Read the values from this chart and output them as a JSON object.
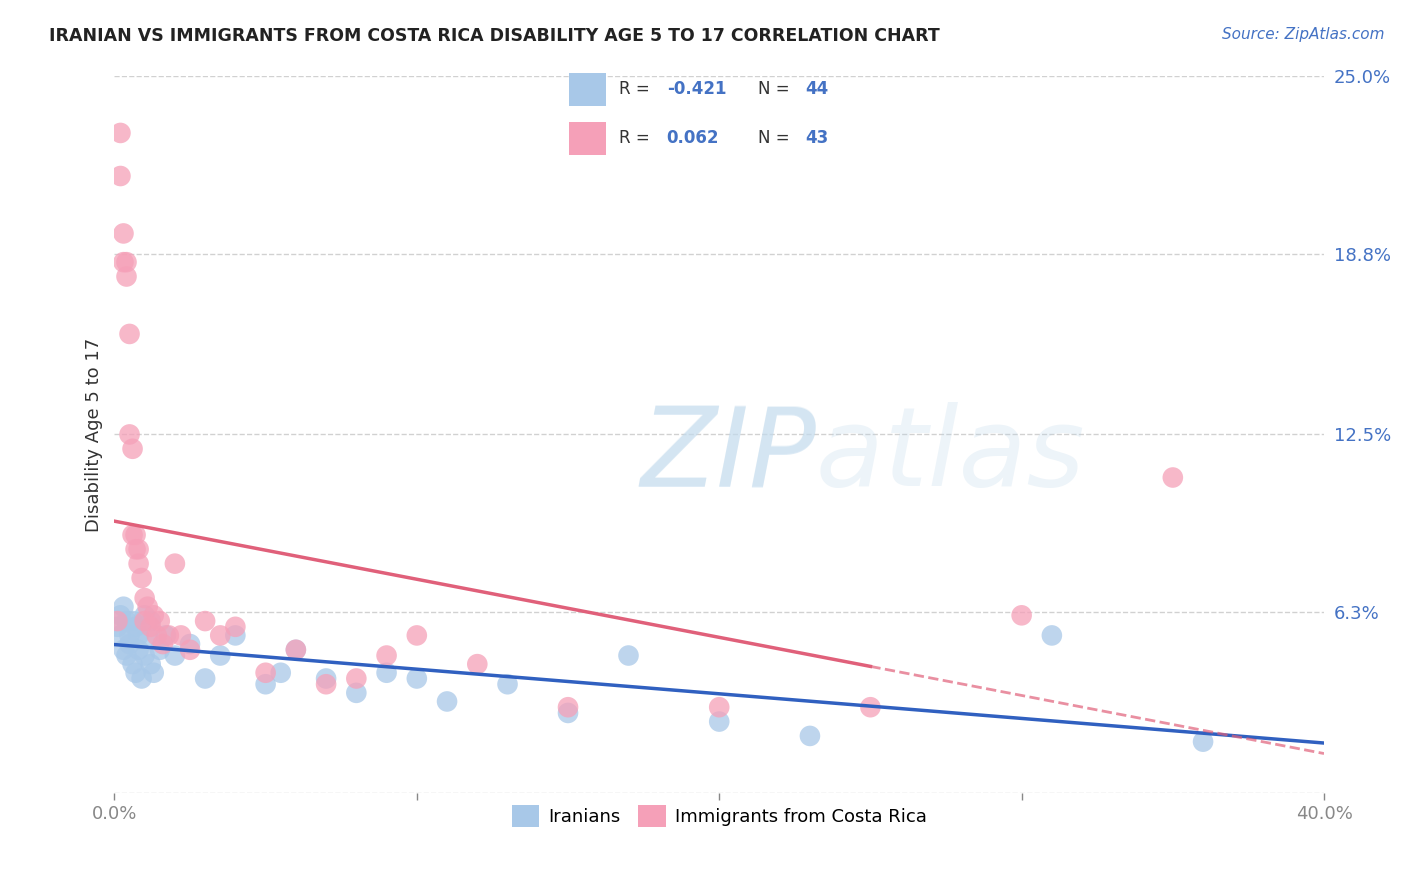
{
  "title": "IRANIAN VS IMMIGRANTS FROM COSTA RICA DISABILITY AGE 5 TO 17 CORRELATION CHART",
  "source": "Source: ZipAtlas.com",
  "ylabel": "Disability Age 5 to 17",
  "xlim": [
    0.0,
    0.4
  ],
  "ylim": [
    0.0,
    0.25
  ],
  "iranians_R": -0.421,
  "iranians_N": 44,
  "costa_rica_R": 0.062,
  "costa_rica_N": 43,
  "blue_color": "#a8c8e8",
  "pink_color": "#f5a0b8",
  "blue_line_color": "#3060C0",
  "pink_line_color": "#E0607A",
  "background_color": "#ffffff",
  "grid_color": "#cccccc",
  "iranians_x": [
    0.001,
    0.002,
    0.002,
    0.003,
    0.003,
    0.004,
    0.004,
    0.005,
    0.005,
    0.006,
    0.006,
    0.007,
    0.007,
    0.008,
    0.008,
    0.009,
    0.01,
    0.01,
    0.011,
    0.012,
    0.012,
    0.013,
    0.015,
    0.017,
    0.02,
    0.025,
    0.03,
    0.035,
    0.04,
    0.05,
    0.055,
    0.06,
    0.07,
    0.08,
    0.09,
    0.1,
    0.11,
    0.13,
    0.15,
    0.17,
    0.2,
    0.23,
    0.31,
    0.36
  ],
  "iranians_y": [
    0.058,
    0.062,
    0.055,
    0.05,
    0.065,
    0.048,
    0.06,
    0.055,
    0.052,
    0.06,
    0.045,
    0.058,
    0.042,
    0.055,
    0.05,
    0.04,
    0.062,
    0.048,
    0.055,
    0.045,
    0.06,
    0.042,
    0.05,
    0.055,
    0.048,
    0.052,
    0.04,
    0.048,
    0.055,
    0.038,
    0.042,
    0.05,
    0.04,
    0.035,
    0.042,
    0.04,
    0.032,
    0.038,
    0.028,
    0.048,
    0.025,
    0.02,
    0.055,
    0.018
  ],
  "costa_rica_x": [
    0.001,
    0.002,
    0.002,
    0.003,
    0.003,
    0.004,
    0.004,
    0.005,
    0.005,
    0.006,
    0.006,
    0.007,
    0.007,
    0.008,
    0.008,
    0.009,
    0.01,
    0.01,
    0.011,
    0.012,
    0.013,
    0.014,
    0.015,
    0.016,
    0.018,
    0.02,
    0.022,
    0.025,
    0.03,
    0.035,
    0.04,
    0.05,
    0.06,
    0.07,
    0.08,
    0.09,
    0.1,
    0.12,
    0.15,
    0.2,
    0.25,
    0.3,
    0.35
  ],
  "costa_rica_y": [
    0.06,
    0.23,
    0.215,
    0.195,
    0.185,
    0.185,
    0.18,
    0.16,
    0.125,
    0.12,
    0.09,
    0.09,
    0.085,
    0.085,
    0.08,
    0.075,
    0.068,
    0.06,
    0.065,
    0.058,
    0.062,
    0.055,
    0.06,
    0.052,
    0.055,
    0.08,
    0.055,
    0.05,
    0.06,
    0.055,
    0.058,
    0.042,
    0.05,
    0.038,
    0.04,
    0.048,
    0.055,
    0.045,
    0.03,
    0.03,
    0.03,
    0.062,
    0.11
  ]
}
